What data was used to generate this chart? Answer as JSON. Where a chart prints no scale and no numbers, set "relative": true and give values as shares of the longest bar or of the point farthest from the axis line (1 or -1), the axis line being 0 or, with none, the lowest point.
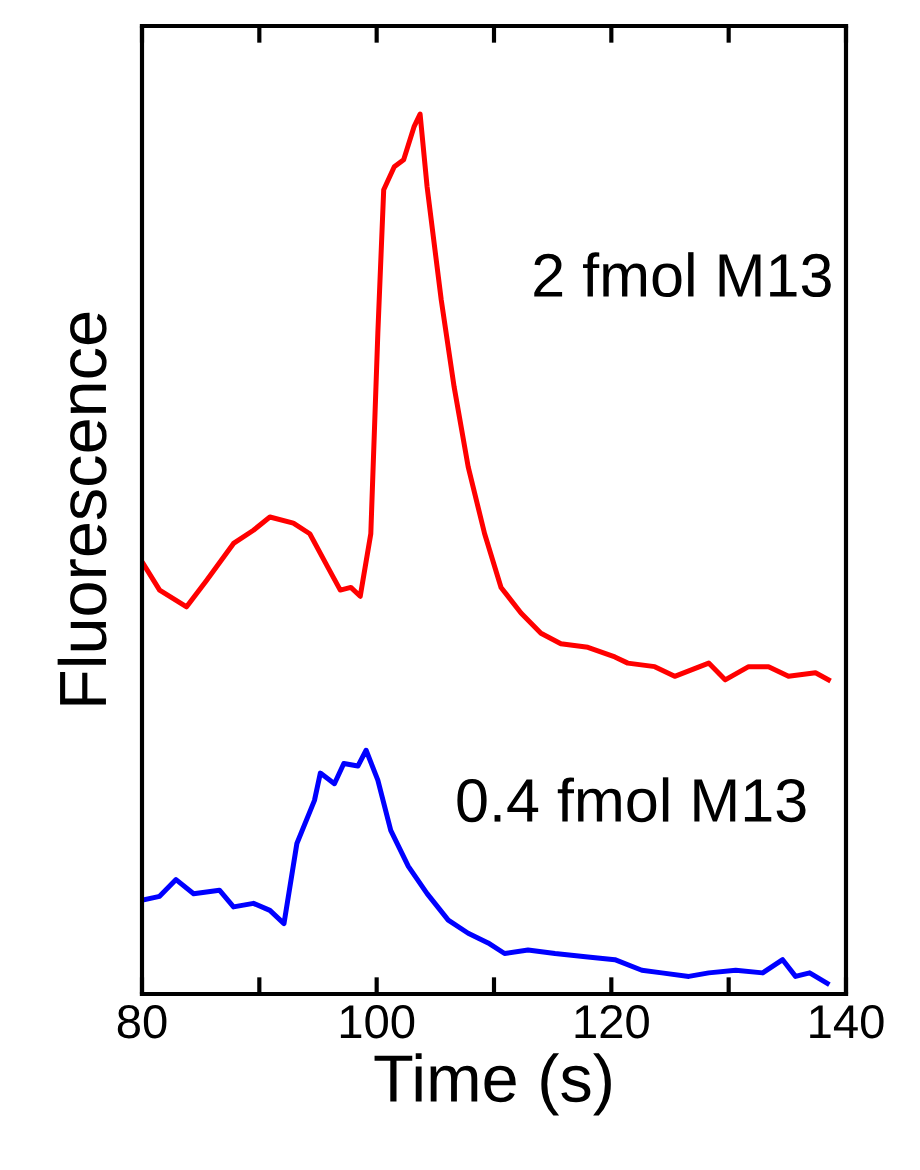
{
  "chart_data": {
    "type": "line",
    "relative": true,
    "xlabel": "Time (s)",
    "ylabel": "Fluorescence",
    "xlim": [
      80,
      140
    ],
    "xticks": [
      80,
      100,
      120,
      140
    ],
    "grid": false,
    "legend": false,
    "marker": "none",
    "line_style": "solid",
    "tick_labels": "x",
    "series": [
      {
        "name": "2 fmol M13",
        "color": "#ff0000",
        "x": [
          80.1,
          81.5,
          83.8,
          85.5,
          87.8,
          89.5,
          90.9,
          92.9,
          94.3,
          95.8,
          96.9,
          97.8,
          98.6,
          99.5,
          100.1,
          100.6,
          101.5,
          102.3,
          103.2,
          103.7,
          104.3,
          105.5,
          106.6,
          107.8,
          109.2,
          110.6,
          112.3,
          114.0,
          115.7,
          118.0,
          120.3,
          121.4,
          123.7,
          125.4,
          128.3,
          129.7,
          131.7,
          133.4,
          135.1,
          137.4,
          138.5
        ],
        "values": [
          0.489,
          0.459,
          0.44,
          0.47,
          0.512,
          0.527,
          0.542,
          0.535,
          0.523,
          0.486,
          0.459,
          0.462,
          0.452,
          0.523,
          0.751,
          0.914,
          0.94,
          0.948,
          0.986,
          1.0,
          0.917,
          0.789,
          0.69,
          0.599,
          0.523,
          0.462,
          0.433,
          0.41,
          0.398,
          0.394,
          0.383,
          0.376,
          0.372,
          0.361,
          0.376,
          0.357,
          0.372,
          0.372,
          0.361,
          0.365,
          0.357
        ]
      },
      {
        "name": "0.4 fmol M13",
        "color": "#0000ff",
        "x": [
          80.1,
          81.5,
          82.9,
          84.4,
          86.6,
          87.8,
          89.5,
          90.9,
          92.1,
          93.2,
          94.7,
          95.2,
          96.4,
          97.2,
          98.4,
          99.1,
          100.1,
          101.2,
          102.7,
          104.3,
          106.1,
          107.8,
          109.5,
          110.9,
          112.9,
          115.2,
          118.0,
          120.3,
          122.6,
          124.3,
          126.6,
          128.3,
          130.6,
          132.9,
          134.6,
          135.7,
          136.9,
          138.4
        ],
        "values": [
          0.107,
          0.111,
          0.13,
          0.114,
          0.118,
          0.099,
          0.103,
          0.095,
          0.08,
          0.171,
          0.22,
          0.251,
          0.239,
          0.262,
          0.259,
          0.277,
          0.243,
          0.186,
          0.145,
          0.114,
          0.084,
          0.069,
          0.058,
          0.046,
          0.05,
          0.046,
          0.042,
          0.039,
          0.027,
          0.024,
          0.02,
          0.024,
          0.027,
          0.024,
          0.039,
          0.02,
          0.024,
          0.012
        ]
      }
    ]
  }
}
